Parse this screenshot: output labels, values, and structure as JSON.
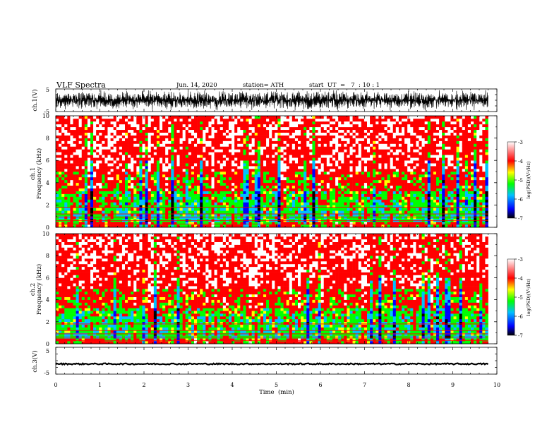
{
  "header": {
    "title": "VLF  Spectra",
    "date": "Jun. 14, 2020",
    "station": "station= ATH",
    "start_ut": "start  UT  =   7  : 10 : 1"
  },
  "chart_data": [
    {
      "type": "line",
      "name": "ch1-waveform",
      "ylabel": "ch.1(V)",
      "ylim": [
        -5,
        5
      ],
      "yticks": [
        "5",
        "-5"
      ],
      "xlim": [
        0,
        10
      ],
      "description_values": {
        "x_end_min": 9.8,
        "amplitude_envelope_V": [
          -4.5,
          4.5
        ]
      }
    },
    {
      "type": "heatmap",
      "name": "ch1-spectrogram",
      "ylabel": "ch.1\nFrequency  (kHz)",
      "ylabel_lines": [
        "ch.1",
        "Frequency  (kHz)"
      ],
      "ylim": [
        0,
        10
      ],
      "yticks": [
        "0",
        "2",
        "4",
        "6",
        "8",
        "10"
      ],
      "xlim": [
        0,
        10
      ],
      "x_end_min": 9.8,
      "colorbar": {
        "label": "log(PSD)(V²/Hz)",
        "range": [
          -7,
          -3
        ],
        "ticks": [
          "-3",
          "-4",
          "-5",
          "-6",
          "-7"
        ],
        "colors": [
          "#000000",
          "#0000ff",
          "#00c0ff",
          "#00ff00",
          "#ffff00",
          "#ff0000",
          "#ffffff"
        ]
      }
    },
    {
      "type": "heatmap",
      "name": "ch2-spectrogram",
      "ylabel": "ch.2\nFrequency  (kHz)",
      "ylabel_lines": [
        "ch.2",
        "Frequency  (kHz)"
      ],
      "ylim": [
        0,
        10
      ],
      "yticks": [
        "0",
        "2",
        "4",
        "6",
        "8",
        "10"
      ],
      "xlim": [
        0,
        10
      ],
      "x_end_min": 9.8,
      "colorbar": {
        "label": "log(PSD)(V²/Hz)",
        "range": [
          -7,
          -3
        ],
        "ticks": [
          "-3",
          "-4",
          "-5",
          "-6",
          "-7"
        ],
        "colors": [
          "#000000",
          "#0000ff",
          "#00c0ff",
          "#00ff00",
          "#ffff00",
          "#ff0000",
          "#ffffff"
        ]
      }
    },
    {
      "type": "line",
      "name": "ch3-waveform",
      "ylabel": "ch.3(V)",
      "ylim": [
        -5,
        5
      ],
      "yticks": [
        "5",
        "-5"
      ],
      "xlim": [
        0,
        10
      ],
      "xlabel": "Time  (min)",
      "xticks": [
        "0",
        "1",
        "2",
        "3",
        "4",
        "5",
        "6",
        "7",
        "8",
        "9",
        "10"
      ],
      "level_V": -1.2,
      "x_end_min": 9.8
    }
  ]
}
